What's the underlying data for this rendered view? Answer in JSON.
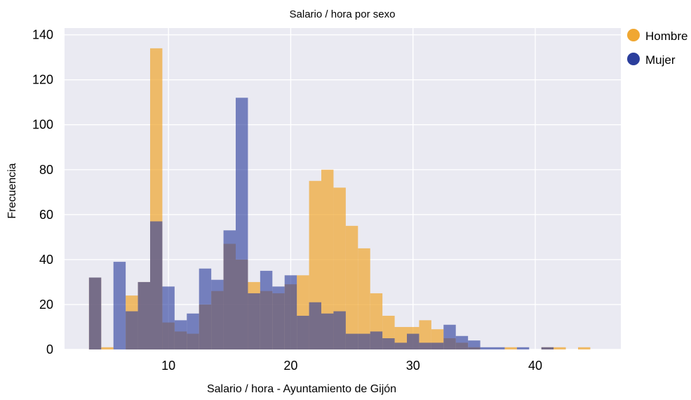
{
  "chart_data": {
    "type": "bar",
    "title": "Salario / hora por sexo",
    "xlabel": "Salario / hora - Ayuntamiento de Gijón",
    "ylabel": "Frecuencia",
    "xlim": [
      1.5,
      47.0
    ],
    "ylim": [
      0,
      143
    ],
    "xticks": [
      10,
      20,
      30,
      40
    ],
    "yticks": [
      0,
      20,
      40,
      60,
      80,
      100,
      120,
      140
    ],
    "grid": true,
    "legend_position": "top-right",
    "bin_width": 1.0,
    "series": [
      {
        "name": "Hombre",
        "color": "#f0a732",
        "bins": [
          [
            3.5,
            32
          ],
          [
            4.5,
            1
          ],
          [
            5.5,
            0
          ],
          [
            6.5,
            24
          ],
          [
            7.5,
            30
          ],
          [
            8.5,
            134
          ],
          [
            9.5,
            12
          ],
          [
            10.5,
            8
          ],
          [
            11.5,
            7
          ],
          [
            12.5,
            20
          ],
          [
            13.5,
            26
          ],
          [
            14.5,
            47
          ],
          [
            15.5,
            40
          ],
          [
            16.5,
            30
          ],
          [
            17.5,
            26
          ],
          [
            18.5,
            25
          ],
          [
            19.5,
            29
          ],
          [
            20.5,
            33
          ],
          [
            21.5,
            75
          ],
          [
            22.5,
            80
          ],
          [
            23.5,
            72
          ],
          [
            24.5,
            55
          ],
          [
            25.5,
            45
          ],
          [
            26.5,
            25
          ],
          [
            27.5,
            15
          ],
          [
            28.5,
            10
          ],
          [
            29.5,
            10
          ],
          [
            30.5,
            13
          ],
          [
            31.5,
            9
          ],
          [
            32.5,
            5
          ],
          [
            33.5,
            3
          ],
          [
            34.5,
            1
          ],
          [
            35.5,
            0
          ],
          [
            36.5,
            0
          ],
          [
            37.5,
            1
          ],
          [
            38.5,
            0
          ],
          [
            39.5,
            0
          ],
          [
            40.5,
            1
          ],
          [
            41.5,
            1
          ],
          [
            42.5,
            0
          ],
          [
            43.5,
            1
          ]
        ]
      },
      {
        "name": "Mujer",
        "color": "#2b3e9c",
        "bins": [
          [
            3.5,
            32
          ],
          [
            4.5,
            0
          ],
          [
            5.5,
            39
          ],
          [
            6.5,
            17
          ],
          [
            7.5,
            30
          ],
          [
            8.5,
            57
          ],
          [
            9.5,
            28
          ],
          [
            10.5,
            13
          ],
          [
            11.5,
            16
          ],
          [
            12.5,
            36
          ],
          [
            13.5,
            31
          ],
          [
            14.5,
            53
          ],
          [
            15.5,
            112
          ],
          [
            16.5,
            25
          ],
          [
            17.5,
            35
          ],
          [
            18.5,
            28
          ],
          [
            19.5,
            33
          ],
          [
            20.5,
            15
          ],
          [
            21.5,
            21
          ],
          [
            22.5,
            16
          ],
          [
            23.5,
            17
          ],
          [
            24.5,
            7
          ],
          [
            25.5,
            7
          ],
          [
            26.5,
            8
          ],
          [
            27.5,
            5
          ],
          [
            28.5,
            3
          ],
          [
            29.5,
            7
          ],
          [
            30.5,
            3
          ],
          [
            31.5,
            3
          ],
          [
            32.5,
            11
          ],
          [
            33.5,
            6
          ],
          [
            34.5,
            4
          ],
          [
            35.5,
            1
          ],
          [
            36.5,
            1
          ],
          [
            37.5,
            0
          ],
          [
            38.5,
            1
          ],
          [
            39.5,
            0
          ],
          [
            40.5,
            1
          ],
          [
            41.5,
            0
          ],
          [
            42.5,
            0
          ]
        ]
      }
    ]
  }
}
